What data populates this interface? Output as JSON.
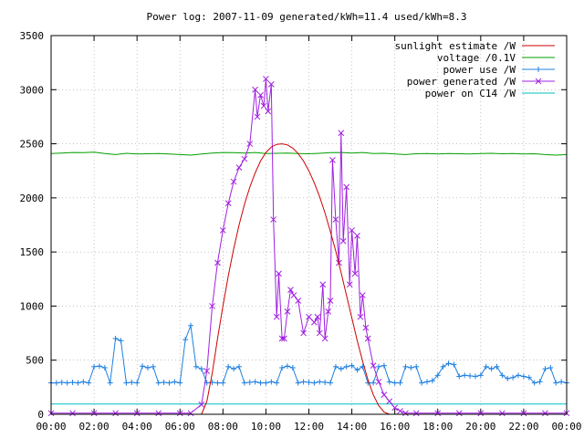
{
  "chart_data": {
    "type": "line",
    "title": "Power log: 2007-11-09 generated/kWh=11.4 used/kWh=8.3",
    "xlabel": "",
    "ylabel": "",
    "xlim": [
      0,
      24
    ],
    "ylim": [
      0,
      3500
    ],
    "x_ticks": [
      "00:00",
      "02:00",
      "04:00",
      "06:00",
      "08:00",
      "10:00",
      "12:00",
      "14:00",
      "16:00",
      "18:00",
      "20:00",
      "22:00",
      "00:00"
    ],
    "y_ticks": [
      0,
      500,
      1000,
      1500,
      2000,
      2500,
      3000,
      3500
    ],
    "grid": true,
    "legend_position": "top-right",
    "series": [
      {
        "name": "sunlight estimate /W",
        "color": "#cc0000",
        "marker": "none",
        "x": [
          7.0,
          7.25,
          7.5,
          7.75,
          8.0,
          8.25,
          8.5,
          8.75,
          9.0,
          9.25,
          9.5,
          9.75,
          10.0,
          10.25,
          10.5,
          10.75,
          11.0,
          11.25,
          11.5,
          11.75,
          12.0,
          12.25,
          12.5,
          12.75,
          13.0,
          13.25,
          13.5,
          13.75,
          14.0,
          14.25,
          14.5,
          14.75,
          15.0,
          15.25,
          15.5,
          15.75,
          16.0,
          16.25,
          16.5
        ],
        "y": [
          0,
          120,
          380,
          700,
          1000,
          1280,
          1530,
          1750,
          1940,
          2100,
          2230,
          2340,
          2420,
          2470,
          2495,
          2500,
          2490,
          2460,
          2410,
          2340,
          2250,
          2140,
          2010,
          1860,
          1690,
          1510,
          1310,
          1100,
          890,
          680,
          490,
          320,
          180,
          80,
          20,
          0,
          0,
          0,
          0
        ]
      },
      {
        "name": "voltage /0.1V",
        "color": "#00a000",
        "marker": "none",
        "x": [
          0,
          0.5,
          1,
          1.5,
          2,
          2.5,
          3,
          3.5,
          4,
          4.5,
          5,
          5.5,
          6,
          6.5,
          7,
          7.5,
          8,
          8.5,
          9,
          9.5,
          10,
          10.5,
          11,
          11.5,
          12,
          12.5,
          13,
          13.5,
          14,
          14.5,
          15,
          15.5,
          16,
          16.5,
          17,
          17.5,
          18,
          18.5,
          19,
          19.5,
          20,
          20.5,
          21,
          21.5,
          22,
          22.5,
          23,
          23.5,
          24
        ],
        "y": [
          2410,
          2415,
          2420,
          2418,
          2422,
          2410,
          2400,
          2412,
          2405,
          2408,
          2410,
          2405,
          2400,
          2395,
          2405,
          2415,
          2420,
          2418,
          2415,
          2420,
          2410,
          2412,
          2415,
          2410,
          2408,
          2412,
          2418,
          2420,
          2415,
          2420,
          2410,
          2412,
          2405,
          2400,
          2408,
          2410,
          2405,
          2410,
          2408,
          2405,
          2410,
          2412,
          2408,
          2410,
          2405,
          2408,
          2400,
          2395,
          2400
        ]
      },
      {
        "name": "power use /W",
        "color": "#1f80e0",
        "marker": "plus",
        "x": [
          0,
          0.25,
          0.5,
          0.75,
          1,
          1.25,
          1.5,
          1.75,
          2,
          2.25,
          2.5,
          2.75,
          3,
          3.25,
          3.5,
          3.75,
          4,
          4.25,
          4.5,
          4.75,
          5,
          5.25,
          5.5,
          5.75,
          6,
          6.25,
          6.5,
          6.75,
          7,
          7.25,
          7.5,
          7.75,
          8,
          8.25,
          8.5,
          8.75,
          9,
          9.25,
          9.5,
          9.75,
          10,
          10.25,
          10.5,
          10.75,
          11,
          11.25,
          11.5,
          11.75,
          12,
          12.25,
          12.5,
          12.75,
          13,
          13.25,
          13.5,
          13.75,
          14,
          14.25,
          14.5,
          14.75,
          15,
          15.25,
          15.5,
          15.75,
          16,
          16.25,
          16.5,
          16.75,
          17,
          17.25,
          17.5,
          17.75,
          18,
          18.25,
          18.5,
          18.75,
          19,
          19.25,
          19.5,
          19.75,
          20,
          20.25,
          20.5,
          20.75,
          21,
          21.25,
          21.5,
          21.75,
          22,
          22.25,
          22.5,
          22.75,
          23,
          23.25,
          23.5,
          23.75,
          24
        ],
        "y": [
          290,
          290,
          295,
          290,
          295,
          290,
          300,
          290,
          440,
          445,
          430,
          290,
          700,
          680,
          290,
          295,
          290,
          445,
          430,
          440,
          290,
          295,
          290,
          300,
          290,
          690,
          820,
          440,
          420,
          290,
          295,
          290,
          290,
          440,
          420,
          440,
          290,
          295,
          300,
          290,
          290,
          300,
          290,
          430,
          445,
          430,
          290,
          300,
          295,
          290,
          300,
          295,
          290,
          440,
          420,
          440,
          450,
          410,
          440,
          290,
          290,
          440,
          450,
          300,
          290,
          290,
          440,
          430,
          440,
          290,
          300,
          310,
          360,
          440,
          470,
          460,
          350,
          360,
          355,
          350,
          360,
          440,
          420,
          440,
          360,
          330,
          340,
          360,
          350,
          340,
          290,
          300,
          420,
          430,
          290,
          300,
          290
        ]
      },
      {
        "name": "power generated /W",
        "color": "#a020e0",
        "marker": "cross",
        "x": [
          0,
          1,
          2,
          3,
          4,
          5,
          6,
          6.5,
          7,
          7.25,
          7.5,
          7.75,
          8,
          8.25,
          8.5,
          8.75,
          9,
          9.25,
          9.5,
          9.6,
          9.75,
          9.9,
          10,
          10.1,
          10.25,
          10.35,
          10.5,
          10.6,
          10.75,
          10.85,
          11,
          11.15,
          11.3,
          11.5,
          11.75,
          12,
          12.25,
          12.4,
          12.5,
          12.65,
          12.75,
          12.9,
          13,
          13.1,
          13.25,
          13.4,
          13.5,
          13.6,
          13.75,
          13.9,
          14,
          14.15,
          14.25,
          14.4,
          14.5,
          14.65,
          14.75,
          15,
          15.25,
          15.5,
          15.75,
          16,
          16.25,
          16.5,
          17,
          18,
          19,
          20,
          21,
          22,
          23,
          24
        ],
        "y": [
          10,
          10,
          10,
          10,
          10,
          10,
          10,
          10,
          90,
          400,
          1000,
          1400,
          1700,
          1950,
          2150,
          2280,
          2360,
          2500,
          3000,
          2750,
          2950,
          2850,
          3100,
          2800,
          3050,
          1800,
          900,
          1300,
          700,
          700,
          950,
          1150,
          1100,
          1050,
          750,
          900,
          850,
          900,
          750,
          1200,
          700,
          950,
          1050,
          2350,
          1800,
          1400,
          2600,
          1600,
          2100,
          1200,
          1700,
          1300,
          1650,
          900,
          1100,
          800,
          700,
          450,
          300,
          180,
          120,
          60,
          30,
          10,
          10,
          10,
          10,
          10,
          10,
          10,
          10,
          10
        ]
      },
      {
        "name": "power on C14 /W",
        "color": "#00c0c0",
        "marker": "none",
        "x": [
          0,
          24
        ],
        "y": [
          95,
          95
        ]
      }
    ]
  }
}
